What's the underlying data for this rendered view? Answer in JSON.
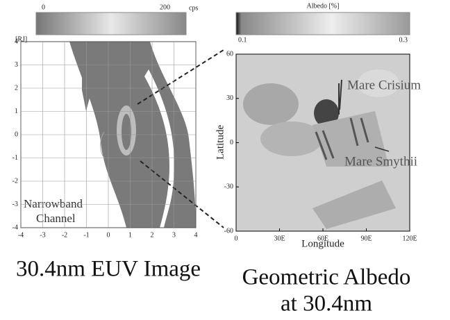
{
  "chart_data": [
    {
      "type": "image",
      "colorbar": {
        "ticks": [
          0,
          200
        ],
        "unit": "cps"
      },
      "y_unit": "[RJ]",
      "xlim": [
        -4,
        4
      ],
      "ylim": [
        -4,
        4
      ],
      "xticks": [
        -4,
        -3,
        -2,
        -1,
        0,
        1,
        2,
        3,
        4
      ],
      "yticks": [
        -4,
        -3,
        -2,
        -1,
        0,
        1,
        2,
        3,
        4
      ],
      "grid": true,
      "annotations": [
        "Narrowband",
        "Channel"
      ],
      "caption": [
        "30.4nm EUV Image"
      ]
    },
    {
      "type": "image",
      "colorbar": {
        "ticks": [
          0.1,
          0.3
        ],
        "label": "Albedo [%]"
      },
      "xlabel": "Longitude",
      "ylabel": "Latitude",
      "xlim": [
        0,
        120
      ],
      "ylim": [
        -60,
        60
      ],
      "xticks": [
        0,
        {
          "value": 30,
          "label": "30E"
        },
        {
          "value": 60,
          "label": "60E"
        },
        {
          "value": 90,
          "label": "90E"
        },
        {
          "value": 120,
          "label": "120E"
        }
      ],
      "yticks": [
        -60,
        -30,
        0,
        30,
        60
      ],
      "grid": false,
      "annotations": [
        "Mare Crisium",
        "Mare Smythii"
      ],
      "caption": [
        "Geometric Albedo",
        "at 30.4nm"
      ]
    }
  ]
}
